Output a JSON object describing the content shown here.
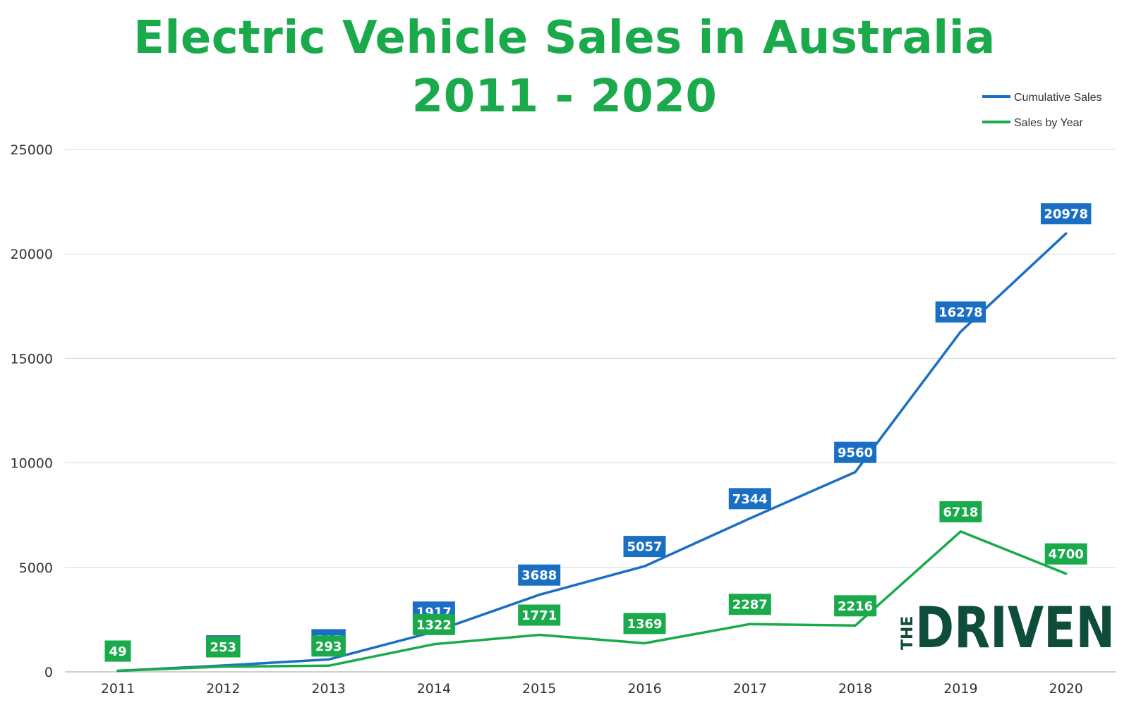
{
  "chart_data": {
    "type": "line",
    "title": "Electric Vehicle Sales in Australia",
    "subtitle": "2011 - 2020",
    "categories": [
      "2011",
      "2012",
      "2013",
      "2014",
      "2015",
      "2016",
      "2017",
      "2018",
      "2019",
      "2020"
    ],
    "series": [
      {
        "name": "Cumulative Sales",
        "color": "#1a6fc4",
        "values": [
          49,
          302,
          595,
          1917,
          3688,
          5057,
          7344,
          9560,
          16278,
          20978
        ]
      },
      {
        "name": "Sales by Year",
        "color": "#1aaa4b",
        "values": [
          49,
          253,
          293,
          1322,
          1771,
          1369,
          2287,
          2216,
          6718,
          4700
        ]
      }
    ],
    "yticks": [
      0,
      5000,
      10000,
      15000,
      20000,
      25000
    ],
    "ylim": [
      0,
      25000
    ],
    "grid": true,
    "legend_position": "top-right",
    "xlabel": "",
    "ylabel": ""
  },
  "logo": {
    "small": "THE",
    "big": "DRIVEN"
  }
}
